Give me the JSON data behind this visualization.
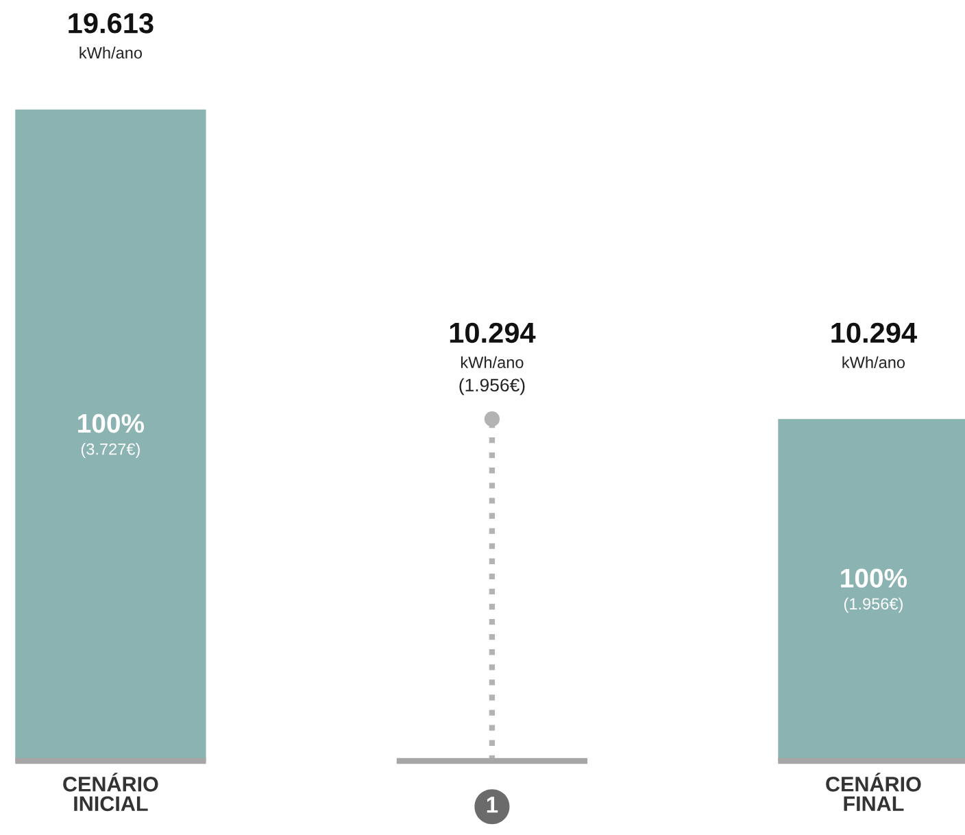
{
  "chart_data": {
    "type": "bar",
    "categories": [
      "CENÁRIO\nINICIAL",
      "1",
      "CENÁRIO\nFINAL"
    ],
    "series": [
      {
        "color": "#8ab3b1",
        "values": [
          19613,
          null,
          10294
        ],
        "value_labels": [
          "19.613",
          null,
          "10.294"
        ]
      },
      {
        "type": "lollipop",
        "color": "#b3b3b3",
        "values": [
          null,
          10294,
          null
        ],
        "value_labels": [
          null,
          "10.294",
          null
        ]
      }
    ],
    "marker": "circle",
    "line_style": "dotted",
    "tick_labels": "x",
    "ref_lines": [
      {
        "axis": "y",
        "value": 0,
        "color": "#a6a6a6"
      }
    ],
    "annotations": [
      "kWh/ano",
      "kWh/ano",
      "(1.956€)",
      "kWh/ano",
      "100%",
      "(3.727€)",
      "100%",
      "(1.956€)"
    ]
  }
}
